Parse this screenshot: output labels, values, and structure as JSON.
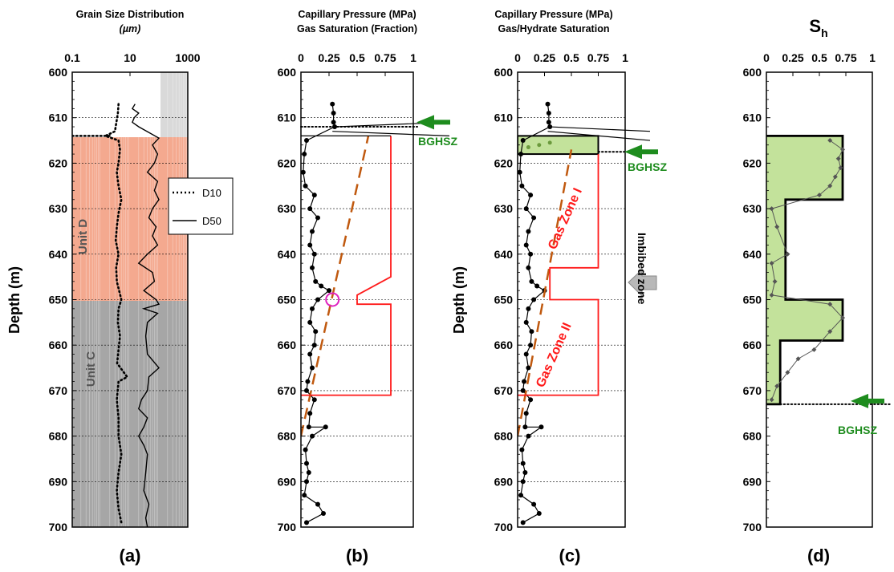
{
  "panels": [
    {
      "label": "(a)",
      "title1": "Grain Size Distribution",
      "title2": "(µm)",
      "xticks": [
        "0.1",
        "10",
        "1000"
      ]
    },
    {
      "label": "(b)",
      "title1": "Capillary Pressure (MPa)",
      "title2": "Gas Saturation (Fraction)",
      "xticks": [
        "0",
        "0.25",
        "0.5",
        "0.75",
        "1"
      ]
    },
    {
      "label": "(c)",
      "title1": "Capillary Pressure (MPa)",
      "title2": "Gas/Hydrate Saturation",
      "xticks": [
        "0",
        "0.25",
        "0.5",
        "0.75",
        "1"
      ]
    },
    {
      "label": "(d)",
      "title1": "S",
      "title_sub": "h",
      "xticks": [
        "0",
        "0.25",
        "0.5",
        "0.75",
        "1"
      ]
    }
  ],
  "ylabel": "Depth (m)",
  "ylim": [
    600,
    700
  ],
  "yticks": [
    "600",
    "610",
    "620",
    "630",
    "640",
    "650",
    "660",
    "670",
    "680",
    "690",
    "700"
  ],
  "annotations": {
    "bghsz": "BGHSZ",
    "unit_d": "Unit D",
    "unit_c": "Unit C",
    "gas_zone_1": "Gas Zone I",
    "gas_zone_2": "Gas Zone II",
    "imbibed": "Imbibed zone"
  },
  "legend": {
    "d10": "D10",
    "d50": "D50"
  },
  "colors": {
    "unit_d": "#f4a98f",
    "unit_c": "#a6a6a6",
    "hydrate_fill": "#c3e29b",
    "red": "#ff1a1a",
    "orange": "#c0590f",
    "green": "#1e8c1e",
    "magenta": "#e020c0",
    "arrow_gray": "#b8b8b8"
  },
  "chart_data": [
    {
      "type": "line",
      "panel": "a",
      "xscale": "log",
      "xlim": [
        0.1,
        1000
      ],
      "ylim": [
        600,
        700
      ],
      "units": [
        {
          "name": "Unit D",
          "top": 614,
          "bottom": 650
        },
        {
          "name": "Unit C",
          "top": 650,
          "bottom": 700
        }
      ],
      "series": [
        {
          "name": "D10",
          "style": "dotted",
          "points": [
            [
              4,
              607
            ],
            [
              3.8,
              609
            ],
            [
              3,
              613
            ],
            [
              1.4,
              614
            ],
            [
              4,
              615
            ],
            [
              4.5,
              617
            ],
            [
              4,
              620
            ],
            [
              3.5,
              622
            ],
            [
              4,
              625
            ],
            [
              5,
              628
            ],
            [
              4,
              631
            ],
            [
              3.5,
              634
            ],
            [
              3.2,
              637
            ],
            [
              4,
              640
            ],
            [
              3.3,
              643
            ],
            [
              3.5,
              646
            ],
            [
              4.2,
              648
            ],
            [
              5,
              650
            ],
            [
              4,
              652
            ],
            [
              3.8,
              655
            ],
            [
              4.5,
              658
            ],
            [
              4,
              661
            ],
            [
              3.6,
              664
            ],
            [
              8,
              667
            ],
            [
              4,
              668
            ],
            [
              3.5,
              672
            ],
            [
              4,
              676
            ],
            [
              4,
              680
            ],
            [
              5,
              684
            ],
            [
              4,
              688
            ],
            [
              3.5,
              692
            ],
            [
              4,
              696
            ],
            [
              5,
              699
            ]
          ]
        },
        {
          "name": "D50",
          "style": "solid",
          "points": [
            [
              15,
              607
            ],
            [
              12,
              608
            ],
            [
              20,
              609
            ],
            [
              14,
              610
            ],
            [
              12,
              611
            ],
            [
              20,
              612
            ],
            [
              100,
              614.5
            ],
            [
              60,
              616
            ],
            [
              90,
              618
            ],
            [
              70,
              620
            ],
            [
              40,
              622
            ],
            [
              90,
              624
            ],
            [
              70,
              626
            ],
            [
              100,
              628
            ],
            [
              60,
              630
            ],
            [
              45,
              632
            ],
            [
              80,
              634
            ],
            [
              60,
              636
            ],
            [
              90,
              638
            ],
            [
              40,
              640
            ],
            [
              20,
              642
            ],
            [
              60,
              644
            ],
            [
              70,
              646
            ],
            [
              30,
              648
            ],
            [
              80,
              650
            ],
            [
              100,
              651
            ],
            [
              30,
              652
            ],
            [
              90,
              653
            ],
            [
              40,
              655
            ],
            [
              35,
              658
            ],
            [
              40,
              662
            ],
            [
              100,
              665
            ],
            [
              45,
              667
            ],
            [
              40,
              670
            ],
            [
              25,
              672
            ],
            [
              20,
              674
            ],
            [
              40,
              676
            ],
            [
              30,
              678
            ],
            [
              20,
              680
            ],
            [
              30,
              682
            ],
            [
              40,
              684
            ],
            [
              35,
              688
            ],
            [
              30,
              692
            ],
            [
              45,
              695
            ],
            [
              35,
              698
            ],
            [
              40,
              700
            ]
          ]
        }
      ]
    },
    {
      "type": "line",
      "panel": "b",
      "xlim": [
        0,
        1
      ],
      "ylim": [
        600,
        700
      ],
      "series": [
        {
          "style": "points",
          "points": [
            [
              0.28,
              607
            ],
            [
              0.29,
              609
            ],
            [
              0.29,
              611
            ],
            [
              0.3,
              612
            ],
            [
              0.05,
              615
            ],
            [
              0.03,
              618
            ],
            [
              0.02,
              622
            ],
            [
              0.04,
              625
            ],
            [
              0.12,
              627
            ],
            [
              0.08,
              630
            ],
            [
              0.15,
              632
            ],
            [
              0.1,
              635
            ],
            [
              0.08,
              638
            ],
            [
              0.12,
              640
            ],
            [
              0.1,
              643
            ],
            [
              0.13,
              646
            ],
            [
              0.18,
              647
            ],
            [
              0.25,
              648
            ],
            [
              0.15,
              650
            ],
            [
              0.1,
              652
            ],
            [
              0.08,
              655
            ],
            [
              0.13,
              657
            ],
            [
              0.12,
              660
            ],
            [
              0.08,
              662
            ],
            [
              0.1,
              665
            ],
            [
              0.06,
              668
            ],
            [
              0.05,
              670
            ],
            [
              0.12,
              672
            ],
            [
              0.08,
              675
            ],
            [
              0.07,
              678
            ],
            [
              0.22,
              678
            ],
            [
              0.1,
              680
            ],
            [
              0.04,
              683
            ],
            [
              0.05,
              686
            ],
            [
              0.07,
              688
            ],
            [
              0.05,
              690
            ],
            [
              0.03,
              693
            ],
            [
              0.15,
              695
            ],
            [
              0.2,
              697
            ],
            [
              0.05,
              699
            ]
          ]
        },
        {
          "name": "capillary pressure",
          "style": "dashed",
          "points": [
            [
              0,
              680
            ],
            [
              0.6,
              614
            ]
          ]
        },
        {
          "name": "gas saturation",
          "style": "step",
          "points": [
            [
              0,
              671
            ],
            [
              0.8,
              671
            ],
            [
              0.8,
              651
            ],
            [
              0.5,
              651
            ],
            [
              0.5,
              649
            ],
            [
              0.8,
              645
            ],
            [
              0.8,
              614
            ]
          ]
        }
      ],
      "annotations": [
        {
          "text": "BGHSZ",
          "depth": 612
        }
      ]
    },
    {
      "type": "line",
      "panel": "c",
      "xlim": [
        0,
        1
      ],
      "ylim": [
        600,
        700
      ],
      "series": [
        {
          "style": "points",
          "points": [
            [
              0.28,
              607
            ],
            [
              0.29,
              609
            ],
            [
              0.29,
              611
            ],
            [
              0.3,
              612
            ],
            [
              0.05,
              615
            ],
            [
              0.03,
              618
            ],
            [
              0.02,
              622
            ],
            [
              0.04,
              625
            ],
            [
              0.12,
              627
            ],
            [
              0.08,
              630
            ],
            [
              0.15,
              632
            ],
            [
              0.1,
              635
            ],
            [
              0.08,
              638
            ],
            [
              0.12,
              640
            ],
            [
              0.1,
              643
            ],
            [
              0.13,
              646
            ],
            [
              0.18,
              647
            ],
            [
              0.25,
              648
            ],
            [
              0.15,
              650
            ],
            [
              0.1,
              652
            ],
            [
              0.08,
              655
            ],
            [
              0.13,
              657
            ],
            [
              0.12,
              660
            ],
            [
              0.08,
              662
            ],
            [
              0.1,
              665
            ],
            [
              0.06,
              668
            ],
            [
              0.05,
              670
            ],
            [
              0.12,
              672
            ],
            [
              0.08,
              675
            ],
            [
              0.07,
              678
            ],
            [
              0.22,
              678
            ],
            [
              0.1,
              680
            ],
            [
              0.04,
              683
            ],
            [
              0.05,
              686
            ],
            [
              0.07,
              688
            ],
            [
              0.05,
              690
            ],
            [
              0.03,
              693
            ],
            [
              0.15,
              695
            ],
            [
              0.2,
              697
            ],
            [
              0.05,
              699
            ]
          ]
        },
        {
          "name": "hydrate saturation",
          "style": "area",
          "top": 614,
          "bottom": 618,
          "value": 0.75
        },
        {
          "name": "capillary pressure",
          "style": "dashed",
          "points": [
            [
              0,
              680
            ],
            [
              0.5,
              617
            ]
          ]
        },
        {
          "name": "gas saturation",
          "style": "step",
          "points": [
            [
              0,
              671
            ],
            [
              0.75,
              671
            ],
            [
              0.75,
              650
            ],
            [
              0.3,
              650
            ],
            [
              0.3,
              643
            ],
            [
              0.75,
              643
            ],
            [
              0.75,
              618
            ]
          ]
        }
      ],
      "annotations": [
        {
          "text": "BGHSZ",
          "depth": 618
        }
      ]
    },
    {
      "type": "area",
      "panel": "d",
      "xlim": [
        0,
        1
      ],
      "ylim": [
        600,
        700
      ],
      "series": [
        {
          "name": "Sh",
          "style": "step",
          "points": [
            [
              0,
              614
            ],
            [
              0.72,
              614
            ],
            [
              0.72,
              628
            ],
            [
              0.18,
              628
            ],
            [
              0.18,
              650
            ],
            [
              0.72,
              650
            ],
            [
              0.72,
              659
            ],
            [
              0.13,
              659
            ],
            [
              0.13,
              673
            ],
            [
              0,
              673
            ]
          ]
        },
        {
          "name": "Sh log",
          "style": "points",
          "points": [
            [
              0.6,
              615
            ],
            [
              0.72,
              617
            ],
            [
              0.68,
              619
            ],
            [
              0.7,
              621
            ],
            [
              0.65,
              623
            ],
            [
              0.6,
              625
            ],
            [
              0.5,
              627
            ],
            [
              0.05,
              630
            ],
            [
              0.1,
              634
            ],
            [
              0.2,
              640
            ],
            [
              0.05,
              642
            ],
            [
              0.08,
              646
            ],
            [
              0.05,
              649
            ],
            [
              0.6,
              651
            ],
            [
              0.72,
              654
            ],
            [
              0.6,
              657
            ],
            [
              0.45,
              661
            ],
            [
              0.3,
              663
            ],
            [
              0.2,
              666
            ],
            [
              0.1,
              669
            ],
            [
              0.05,
              672
            ]
          ]
        }
      ],
      "annotations": [
        {
          "text": "BGHSZ",
          "depth": 673
        }
      ]
    }
  ]
}
